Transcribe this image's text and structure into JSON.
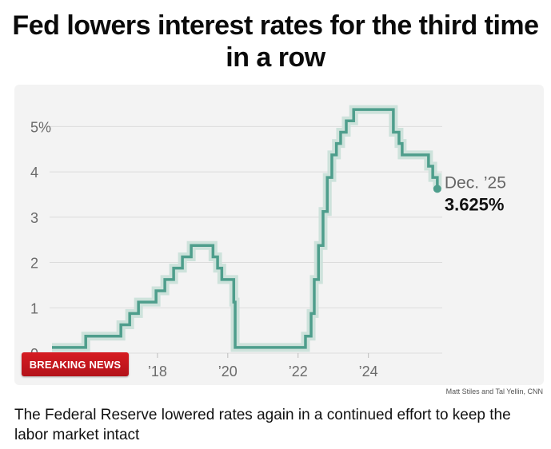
{
  "headline": "Fed lowers interest rates for the third time in a row",
  "credit": "Matt Stiles and Tal Yellin, CNN",
  "caption": "The Federal Reserve lowered rates again in a continued effort to keep the labor market intact",
  "badge": "BREAKING NEWS",
  "colors": {
    "line": "#4e9e8c",
    "band": "#c9e0d8",
    "badge": "#c8161d"
  },
  "chart_data": {
    "type": "line",
    "step": true,
    "ylim": [
      0,
      5.5
    ],
    "xlim": [
      2015.0,
      2026.1
    ],
    "y_ticks": [
      0,
      1,
      2,
      3,
      4,
      5
    ],
    "y_tick_labels": [
      "0",
      "1",
      "2",
      "3",
      "4",
      "5%"
    ],
    "x_ticks": [
      2018,
      2020,
      2022,
      2024
    ],
    "x_tick_labels": [
      "’18",
      "’20",
      "’22",
      "’24"
    ],
    "grid": true,
    "annotation_date": "Dec. ’25",
    "annotation_value": "3.625%",
    "x": [
      2015.0,
      2015.96,
      2016.96,
      2017.21,
      2017.46,
      2017.96,
      2018.21,
      2018.46,
      2018.71,
      2018.96,
      2019.58,
      2019.71,
      2019.83,
      2020.17,
      2020.21,
      2021.0,
      2022.21,
      2022.37,
      2022.46,
      2022.58,
      2022.71,
      2022.83,
      2022.96,
      2023.09,
      2023.21,
      2023.37,
      2023.58,
      2024.71,
      2024.87,
      2024.96,
      2025.71,
      2025.83,
      2025.96
    ],
    "y": [
      0.125,
      0.375,
      0.625,
      0.875,
      1.125,
      1.375,
      1.625,
      1.875,
      2.125,
      2.375,
      2.125,
      1.875,
      1.625,
      1.125,
      0.125,
      0.125,
      0.375,
      0.875,
      1.625,
      2.375,
      3.125,
      3.875,
      4.375,
      4.625,
      4.875,
      5.125,
      5.375,
      4.875,
      4.625,
      4.375,
      4.125,
      3.875,
      3.625
    ]
  }
}
